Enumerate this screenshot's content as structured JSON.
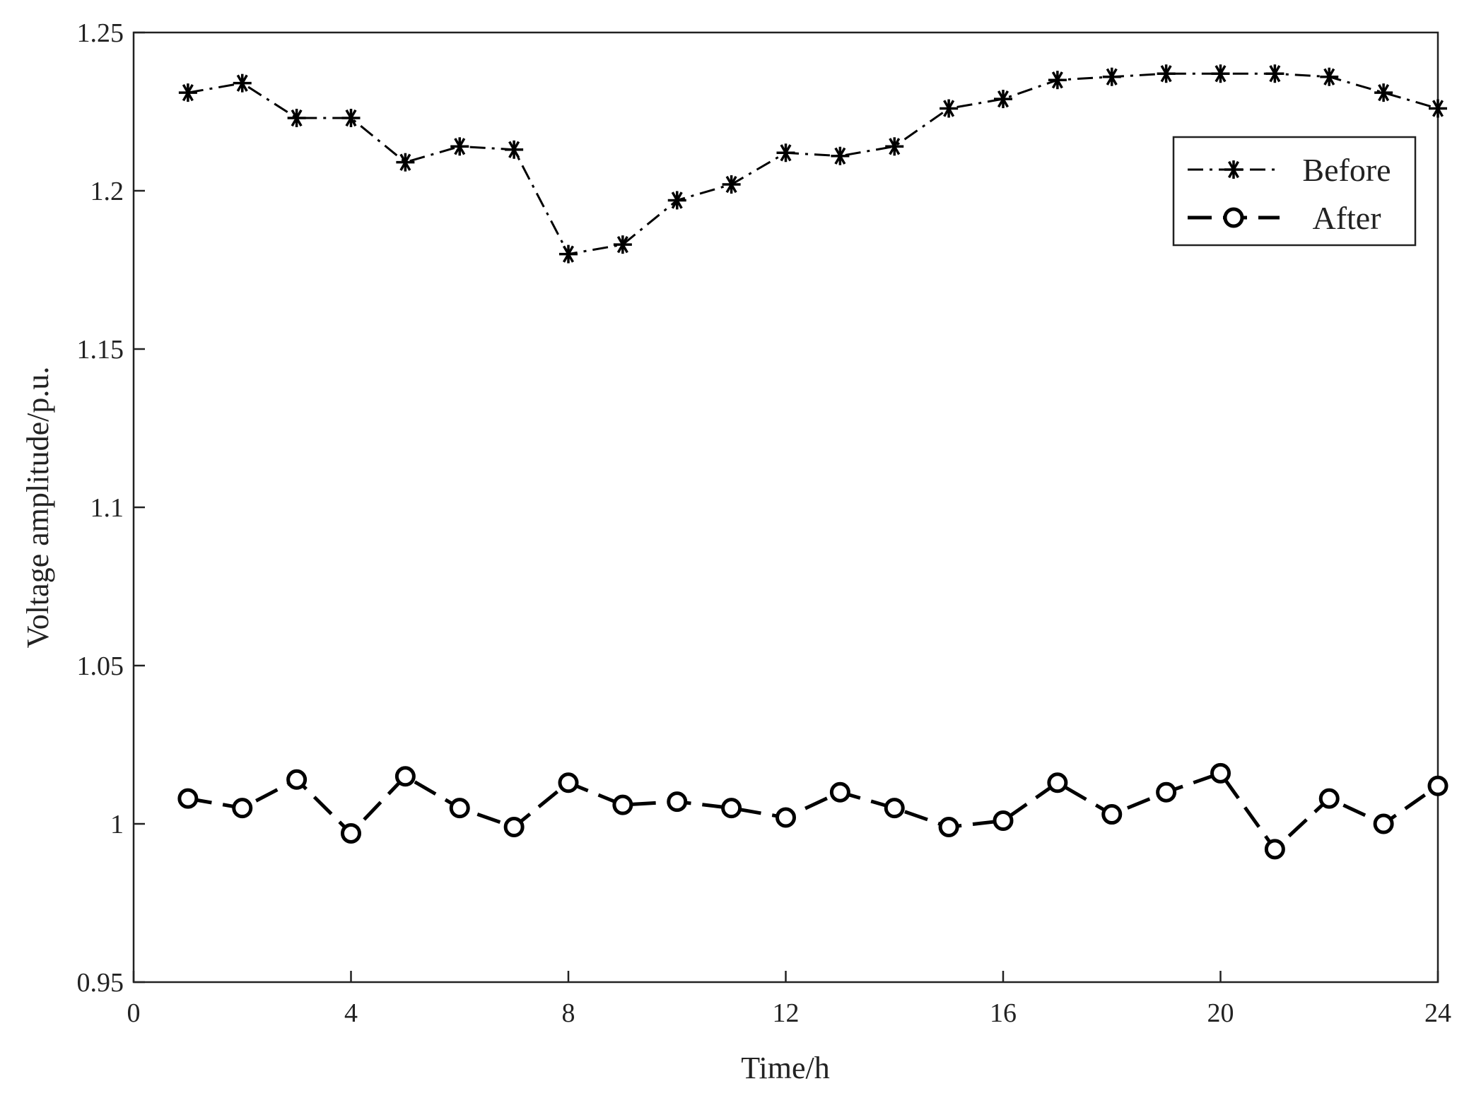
{
  "chart_data": {
    "type": "line",
    "title": "",
    "xlabel": "Time/h",
    "ylabel": "Voltage amplitude/p.u.",
    "xlim": [
      0,
      24
    ],
    "ylim": [
      0.95,
      1.25
    ],
    "xticks": [
      0,
      4,
      8,
      12,
      16,
      20,
      24
    ],
    "xtick_labels": [
      "0",
      "4",
      "8",
      "12",
      "16",
      "20",
      "24"
    ],
    "yticks": [
      0.95,
      1.0,
      1.05,
      1.1,
      1.15,
      1.2,
      1.25
    ],
    "ytick_labels": [
      "0.95",
      "1",
      "1.05",
      "1.1",
      "1.15",
      "1.2",
      "1.25"
    ],
    "grid": false,
    "legend_position": "top-right",
    "x": [
      1,
      2,
      3,
      4,
      5,
      6,
      7,
      8,
      9,
      10,
      11,
      12,
      13,
      14,
      15,
      16,
      17,
      18,
      19,
      20,
      21,
      22,
      23,
      24
    ],
    "series": [
      {
        "name": "Before",
        "marker": "asterisk",
        "line_style": "dash-dot",
        "color": "#000000",
        "values": [
          1.231,
          1.234,
          1.223,
          1.223,
          1.209,
          1.214,
          1.213,
          1.18,
          1.183,
          1.197,
          1.202,
          1.212,
          1.211,
          1.214,
          1.226,
          1.229,
          1.235,
          1.236,
          1.237,
          1.237,
          1.237,
          1.236,
          1.231,
          1.226
        ]
      },
      {
        "name": "After",
        "marker": "circle",
        "line_style": "dashed",
        "color": "#000000",
        "values": [
          1.008,
          1.005,
          1.014,
          0.997,
          1.015,
          1.005,
          0.999,
          1.013,
          1.006,
          1.007,
          1.005,
          1.002,
          1.01,
          1.005,
          0.999,
          1.001,
          1.013,
          1.003,
          1.01,
          1.016,
          0.992,
          1.008,
          1.0,
          1.012
        ]
      }
    ]
  }
}
